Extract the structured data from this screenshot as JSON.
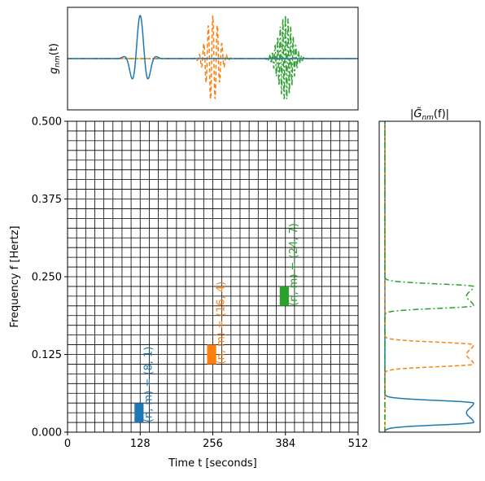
{
  "chart_data": [
    {
      "type": "line",
      "panel": "top",
      "ylabel": "g_nm(t)",
      "xlim": [
        0,
        512
      ],
      "xticks_visible": false,
      "yticks_visible": false,
      "series": [
        {
          "name": "(n, m) = (8, 1)",
          "color": "#1f77b4",
          "linestyle": "solid",
          "center_t": 128,
          "frequency": 0.03125
        },
        {
          "name": "(n, m) = (16, 4)",
          "color": "#ff7f0e",
          "linestyle": "dashed",
          "center_t": 256,
          "frequency": 0.125
        },
        {
          "name": "(n, m) = (24, 7)",
          "color": "#2ca02c",
          "linestyle": "dashdot",
          "center_t": 384,
          "frequency": 0.21875
        }
      ]
    },
    {
      "type": "heatmap",
      "panel": "main",
      "xlabel": "Time t [seconds]",
      "ylabel": "Frequency f [Hertz]",
      "xlim": [
        0,
        512
      ],
      "ylim": [
        0,
        0.5
      ],
      "xticks": [
        "0",
        "128",
        "256",
        "384",
        "512"
      ],
      "yticks": [
        "0.000",
        "0.125",
        "0.250",
        "0.375",
        "0.500"
      ],
      "grid": "tiling",
      "grid_columns": 32,
      "grid_rows": 32,
      "highlighted_tiles": [
        {
          "label": "(n, m) = (8, 1)",
          "t_start": 118,
          "t_end": 134,
          "f_start": 0.015625,
          "f_end": 0.046875,
          "color": "#1f77b4"
        },
        {
          "label": "(n, m) = (16, 4)",
          "t_start": 246,
          "t_end": 262,
          "f_start": 0.109375,
          "f_end": 0.140625,
          "color": "#ff7f0e"
        },
        {
          "label": "(n, m) = (24, 7)",
          "t_start": 374,
          "t_end": 390,
          "f_start": 0.203125,
          "f_end": 0.234375,
          "color": "#2ca02c"
        }
      ]
    },
    {
      "type": "line",
      "panel": "right",
      "title": "|G̃_nm(f)|",
      "ylim": [
        0,
        0.5
      ],
      "xticks_visible": false,
      "yticks_visible": false,
      "series": [
        {
          "name": "(n, m) = (8, 1)",
          "color": "#1f77b4",
          "linestyle": "solid",
          "peak_f_low": 0.015625,
          "peak_f_high": 0.046875
        },
        {
          "name": "(n, m) = (16, 4)",
          "color": "#ff7f0e",
          "linestyle": "dashed",
          "peak_f_low": 0.109375,
          "peak_f_high": 0.140625
        },
        {
          "name": "(n, m) = (24, 7)",
          "color": "#2ca02c",
          "linestyle": "dashdot",
          "peak_f_low": 0.203125,
          "peak_f_high": 0.234375
        }
      ]
    }
  ]
}
